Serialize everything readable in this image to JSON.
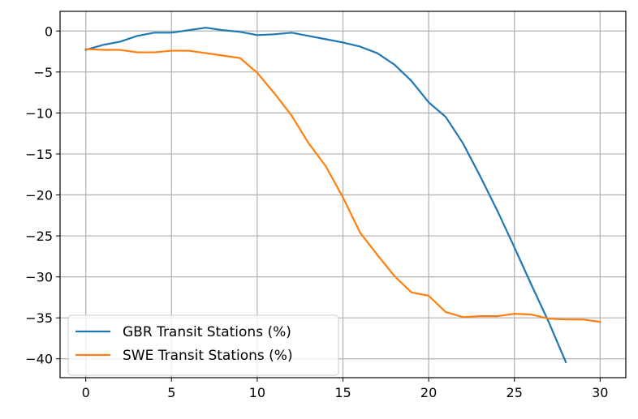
{
  "chart_data": {
    "type": "line",
    "title": "",
    "xlabel": "",
    "ylabel": "",
    "xlim": [
      -1.5,
      31.5
    ],
    "ylim": [
      -42.3,
      2.4
    ],
    "xticks": [
      0,
      5,
      10,
      15,
      20,
      25,
      30
    ],
    "yticks": [
      0,
      -5,
      -10,
      -15,
      -20,
      -25,
      -30,
      -35,
      -40
    ],
    "grid": true,
    "legend_position": "lower-left",
    "series": [
      {
        "name": "GBR Transit Stations (%)",
        "color": "#1f77b4",
        "x": [
          0,
          1,
          2,
          3,
          4,
          5,
          6,
          7,
          8,
          9,
          10,
          11,
          12,
          13,
          14,
          15,
          16,
          17,
          18,
          19,
          20,
          21,
          22,
          23,
          24,
          25,
          26,
          27,
          28
        ],
        "y": [
          -2.3,
          -1.7,
          -1.3,
          -0.6,
          -0.2,
          -0.2,
          0.1,
          0.4,
          0.1,
          -0.1,
          -0.5,
          -0.4,
          -0.2,
          -0.6,
          -1.0,
          -1.4,
          -1.9,
          -2.7,
          -4.1,
          -6.1,
          -8.7,
          -10.5,
          -13.7,
          -17.7,
          -21.9,
          -26.4,
          -31.0,
          -35.5,
          -40.4
        ]
      },
      {
        "name": "SWE Transit Stations (%)",
        "color": "#ff7f0e",
        "x": [
          0,
          1,
          2,
          3,
          4,
          5,
          6,
          7,
          8,
          9,
          10,
          11,
          12,
          13,
          14,
          15,
          16,
          17,
          18,
          19,
          20,
          21,
          22,
          23,
          24,
          25,
          26,
          27,
          28,
          29,
          30
        ],
        "y": [
          -2.2,
          -2.3,
          -2.3,
          -2.6,
          -2.6,
          -2.4,
          -2.4,
          -2.7,
          -3.0,
          -3.3,
          -5.1,
          -7.6,
          -10.3,
          -13.7,
          -16.5,
          -20.3,
          -24.6,
          -27.3,
          -29.9,
          -31.9,
          -32.3,
          -34.3,
          -34.9,
          -34.8,
          -34.8,
          -34.5,
          -34.6,
          -35.1,
          -35.2,
          -35.2,
          -35.5
        ]
      }
    ]
  }
}
